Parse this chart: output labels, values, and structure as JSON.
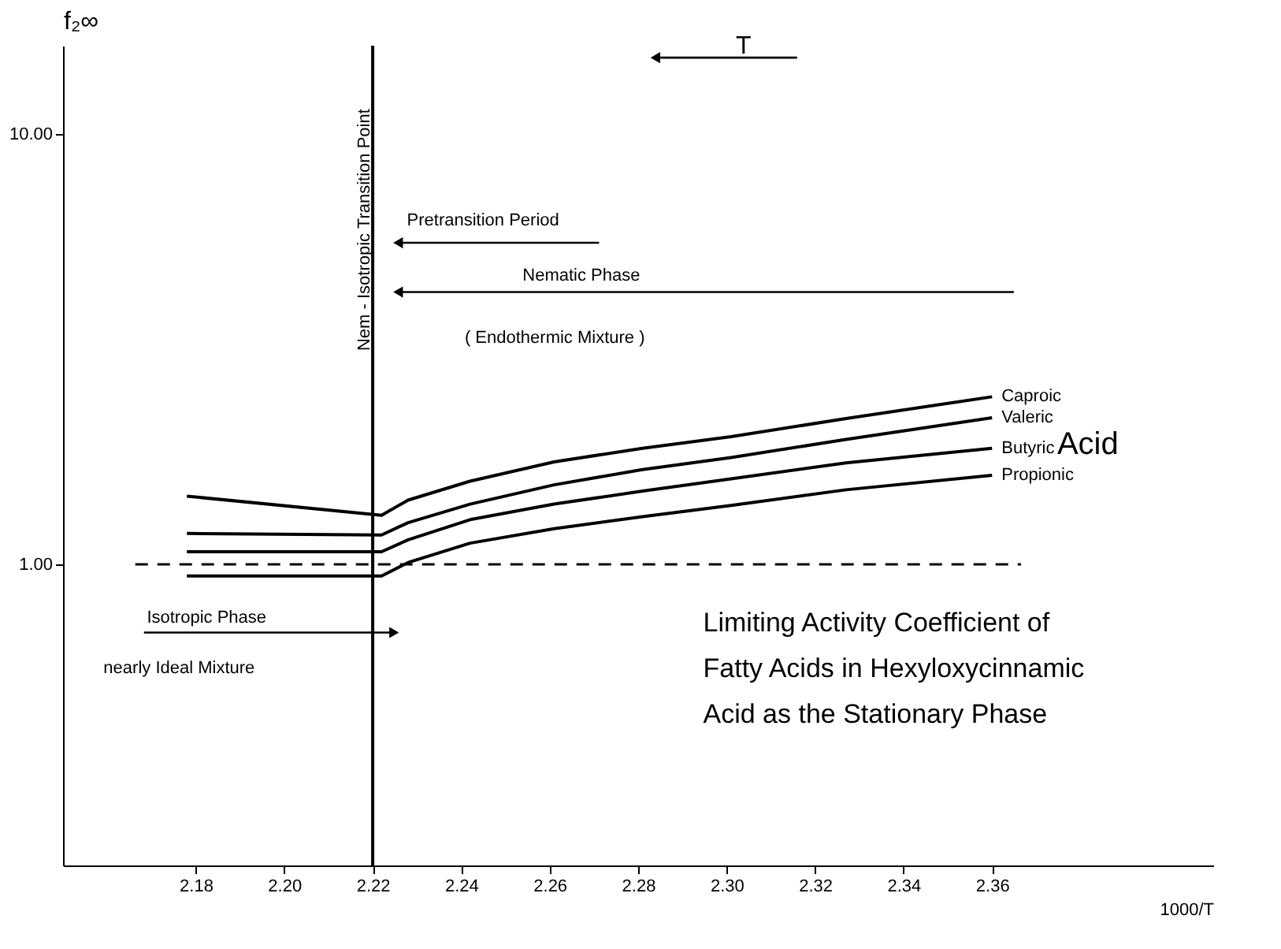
{
  "chart_data": {
    "type": "line",
    "xlabel": "1000/T",
    "ylabel": "f₂∞",
    "log": true,
    "grid": false,
    "marker": "none",
    "line_style": "solid",
    "xlim": [
      2.15,
      2.41
    ],
    "xticks": [
      2.18,
      {
        "value": 2.2,
        "label": "2.20"
      },
      2.22,
      2.24,
      2.26,
      2.28,
      {
        "value": 2.3,
        "label": "2.30"
      },
      2.32,
      2.34,
      2.36
    ],
    "ylim": [
      0.2,
      16
    ],
    "yticks": [
      {
        "value": 1,
        "label": "1.00"
      },
      {
        "value": 10,
        "label": "10.00"
      }
    ],
    "x": [
      2.178,
      2.222,
      2.228,
      2.242,
      2.261,
      2.281,
      2.301,
      2.327,
      2.36
    ],
    "series": [
      {
        "name": "Caproic",
        "color": "#000000",
        "values": [
          1.44,
          1.3,
          1.41,
          1.56,
          1.73,
          1.86,
          1.98,
          2.18,
          2.45
        ]
      },
      {
        "name": "Valeric",
        "color": "#000000",
        "values": [
          1.18,
          1.17,
          1.25,
          1.38,
          1.53,
          1.66,
          1.77,
          1.95,
          2.19
        ]
      },
      {
        "name": "Butyric",
        "color": "#000000",
        "values": [
          1.07,
          1.07,
          1.14,
          1.27,
          1.38,
          1.48,
          1.58,
          1.72,
          1.86
        ]
      },
      {
        "name": "Propionic",
        "color": "#000000",
        "values": [
          0.94,
          0.94,
          1.01,
          1.12,
          1.21,
          1.29,
          1.37,
          1.49,
          1.61
        ]
      }
    ],
    "ref_lines": [
      {
        "axis": "x",
        "value": 2.22,
        "label": "Nem - Isotropic Transition Point",
        "color": "#000000",
        "line_style": "solid"
      },
      {
        "axis": "y",
        "value": 1,
        "color": "#000000",
        "line_style": "dashed"
      }
    ],
    "annotations": [
      "Pretransition Period",
      "Nematic Phase",
      "( Endothermic Mixture )",
      "Isotropic Phase",
      "nearly Ideal Mixture",
      "Acid",
      "Limiting Activity Coefficient of\nFatty Acids in Hexyloxycinnamic\nAcid as the Stationary Phase",
      "T"
    ]
  }
}
